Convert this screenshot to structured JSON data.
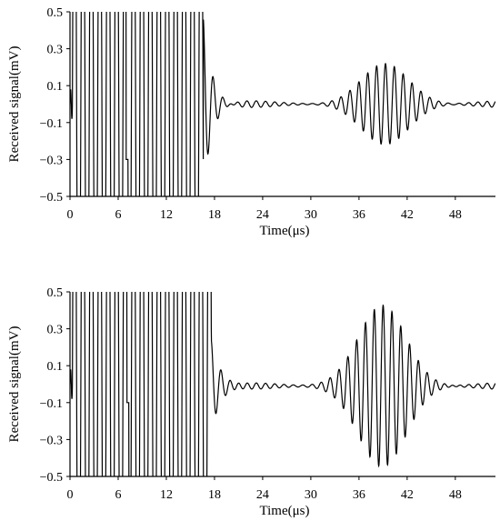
{
  "chart_data": [
    {
      "type": "line",
      "title": "",
      "xlabel": "Time(μs)",
      "ylabel": "Received signal(mV)",
      "xlim": [
        0,
        53
      ],
      "ylim": [
        -0.5,
        0.5
      ],
      "xticks": [
        0,
        6,
        12,
        18,
        24,
        30,
        36,
        42,
        48
      ],
      "yticks": [
        0.5,
        0.3,
        0.1,
        -0.1,
        -0.3,
        -0.5
      ],
      "xtick_labels": [
        "0",
        "6",
        "12",
        "18",
        "24",
        "30",
        "36",
        "42",
        "48"
      ],
      "ytick_labels": [
        "0.5",
        "0.3",
        "0.1",
        "−0.1",
        "−0.3",
        "−0.5"
      ],
      "grid": false,
      "legend": "none",
      "series": [
        {
          "color": "#000000",
          "description_points": {
            "saturated_burst_end": 16.6,
            "clipped_to_range": [
              -0.5,
              0.5
            ],
            "spike": {
              "x": 7.1,
              "y": -0.3
            },
            "after_burst": [
              [
                17.2,
                0.47
              ],
              [
                18.0,
                -0.25
              ],
              [
                18.6,
                0.05
              ],
              [
                19.2,
                -0.05
              ]
            ],
            "noise_level": 0.02,
            "wave_packet": {
              "center": 39.3,
              "peak_amplitude": 0.2,
              "period": 1.1,
              "baseline": 0.0
            }
          }
        }
      ]
    },
    {
      "type": "line",
      "title": "",
      "xlabel": "Time(μs)",
      "ylabel": "Received signal(mV)",
      "xlim": [
        0,
        53
      ],
      "ylim": [
        -0.5,
        0.5
      ],
      "xticks": [
        0,
        6,
        12,
        18,
        24,
        30,
        36,
        42,
        48
      ],
      "yticks": [
        0.5,
        0.3,
        0.1,
        -0.1,
        -0.3,
        -0.5
      ],
      "xtick_labels": [
        "0",
        "6",
        "12",
        "18",
        "24",
        "30",
        "36",
        "42",
        "48"
      ],
      "ytick_labels": [
        "0.5",
        "0.3",
        "0.1",
        "−0.1",
        "−0.3",
        "−0.5"
      ],
      "grid": false,
      "legend": "none",
      "series": [
        {
          "color": "#000000",
          "description_points": {
            "saturated_burst_end": 17.6,
            "clipped_to_range": [
              -0.5,
              0.5
            ],
            "spike": {
              "x": 7.2,
              "y": -0.1
            },
            "after_burst": [
              [
                18.6,
                0.24
              ],
              [
                19.2,
                -0.18
              ],
              [
                20.0,
                -0.1
              ],
              [
                21.0,
                -0.03
              ]
            ],
            "noise_level": 0.02,
            "wave_packet": {
              "center": 39.0,
              "peak_amplitude": 0.44,
              "period": 1.1,
              "baseline": -0.01
            }
          }
        }
      ]
    }
  ]
}
